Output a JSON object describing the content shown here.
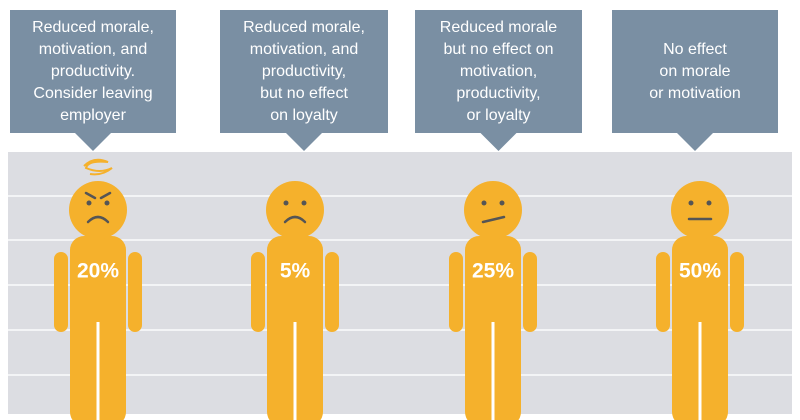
{
  "panels": [
    {
      "caption": [
        "Reduced morale,",
        "motivation, and",
        "productivity.",
        "Consider leaving",
        "employer"
      ],
      "percent": "20%"
    },
    {
      "caption": [
        "Reduced morale,",
        "motivation, and",
        "productivity,",
        "but no effect",
        "on loyalty"
      ],
      "percent": "5%"
    },
    {
      "caption": [
        "Reduced morale",
        "but no effect on",
        "motivation,",
        "productivity,",
        "or loyalty"
      ],
      "percent": "25%"
    },
    {
      "caption": [
        "No effect",
        "on morale",
        "or motivation"
      ],
      "percent": "50%"
    }
  ]
}
